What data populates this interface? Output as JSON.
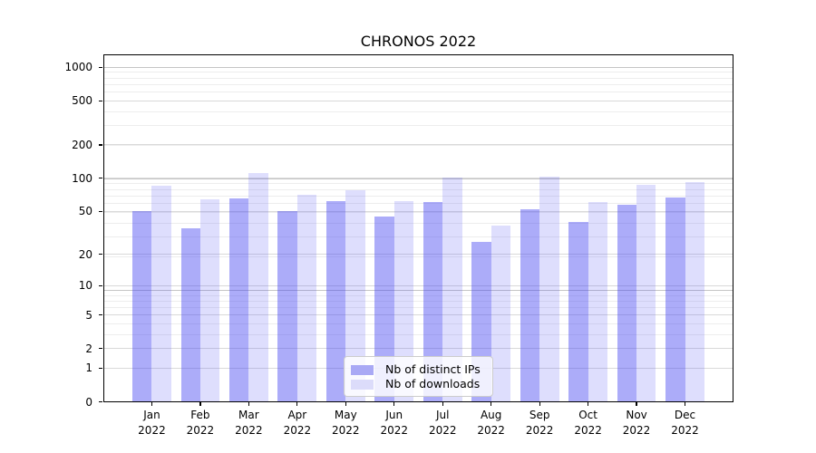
{
  "chart_data": {
    "type": "bar",
    "title": "CHRONOS 2022",
    "categories": [
      "Jan 2022",
      "Feb 2022",
      "Mar 2022",
      "Apr 2022",
      "May 2022",
      "Jun 2022",
      "Jul 2022",
      "Aug 2022",
      "Sep 2022",
      "Oct 2022",
      "Nov 2022",
      "Dec 2022"
    ],
    "series": [
      {
        "name": "Nb of distinct IPs",
        "values": [
          50,
          35,
          66,
          50,
          62,
          45,
          61,
          26,
          52,
          40,
          58,
          67
        ],
        "color": "rgba(72,72,242,0.45)",
        "legend_color": "#a9a9f5"
      },
      {
        "name": "Nb of downloads",
        "values": [
          85,
          65,
          112,
          71,
          78,
          62,
          101,
          37,
          104,
          61,
          88,
          93
        ],
        "color": "rgba(72,72,242,0.18)",
        "legend_color": "#dcdcfa"
      }
    ],
    "yscale": "log10(value+1)",
    "yticks": [
      0,
      1,
      2,
      5,
      10,
      20,
      50,
      100,
      200,
      500,
      1000
    ],
    "xlabel": "",
    "ylabel": "",
    "grid": "horizontal major and minor gridlines",
    "legend_position": "inside bottom-center"
  },
  "colors": {
    "grid_minor": "#ededed",
    "grid_tick": "#d9d9d9",
    "grid_major": "#c5c5c5",
    "spine": "#000000",
    "background": "#ffffff"
  }
}
